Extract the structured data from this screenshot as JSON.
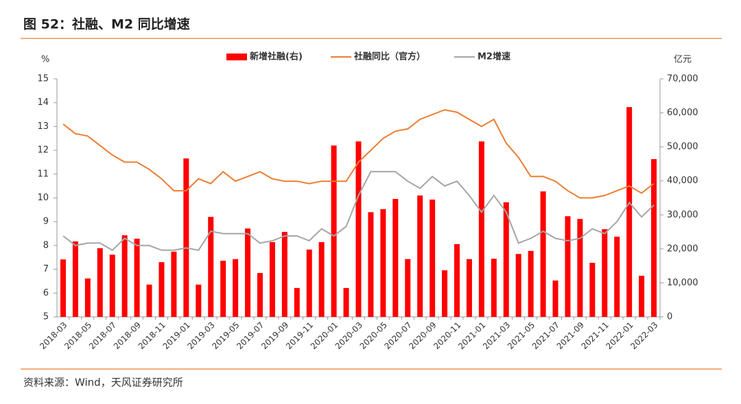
{
  "chart_data": {
    "type": "combo",
    "title": "图 52：社融、M2 同比增速",
    "source": "资料来源：Wind，天风证券研究所",
    "ylabel": "%",
    "y2label": "亿元",
    "categories": [
      "2018-03",
      null,
      "2018-05",
      null,
      "2018-07",
      null,
      "2018-09",
      null,
      "2018-11",
      null,
      "2019-01",
      null,
      "2019-03",
      null,
      "2019-05",
      null,
      "2019-07",
      null,
      "2019-09",
      null,
      "2019-11",
      null,
      "2020-01",
      null,
      "2020-03",
      null,
      "2020-05",
      null,
      "2020-07",
      null,
      "2020-09",
      null,
      "2020-11",
      null,
      "2021-01",
      null,
      "2021-03",
      null,
      "2021-05",
      null,
      "2021-07",
      null,
      "2021-09",
      null,
      "2021-11",
      null,
      "2022-01",
      null,
      "2022-03"
    ],
    "series": [
      {
        "name": "新增社融(右)",
        "type": "bar",
        "axis": "y2",
        "color": "#ff0000",
        "values": [
          16900,
          22200,
          11300,
          20200,
          18300,
          24000,
          23000,
          9500,
          16100,
          19200,
          46600,
          9500,
          29400,
          16500,
          17000,
          26000,
          12900,
          22000,
          25000,
          8500,
          19800,
          22000,
          50400,
          8500,
          51600,
          30800,
          31700,
          34700,
          17000,
          35700,
          34500,
          13700,
          21400,
          17000,
          51600,
          17100,
          33700,
          18500,
          19400,
          36900,
          10700,
          29600,
          28800,
          15900,
          25800,
          23600,
          61700,
          12100,
          46400
        ]
      },
      {
        "name": "社融同比（官方）",
        "type": "line",
        "color": "#ed7d31",
        "values": [
          13.1,
          12.7,
          12.6,
          12.2,
          11.8,
          11.5,
          11.5,
          11.2,
          10.8,
          10.3,
          10.3,
          10.8,
          10.6,
          11.1,
          10.7,
          10.9,
          11.1,
          10.8,
          10.7,
          10.7,
          10.6,
          10.7,
          10.7,
          10.7,
          11.5,
          12.0,
          12.5,
          12.8,
          12.9,
          13.3,
          13.5,
          13.7,
          13.6,
          13.3,
          13.0,
          13.3,
          12.3,
          11.7,
          10.9,
          10.9,
          10.7,
          10.3,
          10.0,
          10.0,
          10.1,
          10.3,
          10.5,
          10.2,
          10.6
        ]
      },
      {
        "name": "M2增速",
        "type": "line",
        "color": "#a5a5a5",
        "values": [
          8.4,
          8.0,
          8.1,
          8.1,
          7.8,
          8.3,
          8.0,
          8.0,
          7.8,
          7.8,
          7.9,
          7.8,
          8.6,
          8.5,
          8.5,
          8.5,
          8.1,
          8.2,
          8.4,
          8.4,
          8.2,
          8.7,
          8.4,
          8.8,
          10.1,
          11.1,
          11.1,
          11.1,
          10.7,
          10.4,
          10.9,
          10.5,
          10.7,
          10.1,
          9.4,
          10.1,
          9.4,
          8.1,
          8.3,
          8.6,
          8.3,
          8.2,
          8.3,
          8.7,
          8.5,
          9.0,
          9.8,
          9.2,
          9.7
        ]
      }
    ],
    "ylim": [
      5,
      15
    ],
    "yticks": [
      5,
      6,
      7,
      8,
      9,
      10,
      11,
      12,
      13,
      14,
      15
    ],
    "y2lim": [
      0,
      70000
    ],
    "y2ticks": [
      0,
      {
        "value": 10000,
        "label": "10,000"
      },
      {
        "value": 20000,
        "label": "20,000"
      },
      {
        "value": 30000,
        "label": "30,000"
      },
      {
        "value": 40000,
        "label": "40,000"
      },
      {
        "value": 50000,
        "label": "50,000"
      },
      {
        "value": 60000,
        "label": "60,000"
      },
      {
        "value": 70000,
        "label": "70,000"
      }
    ],
    "grid": false,
    "legend": "top"
  }
}
